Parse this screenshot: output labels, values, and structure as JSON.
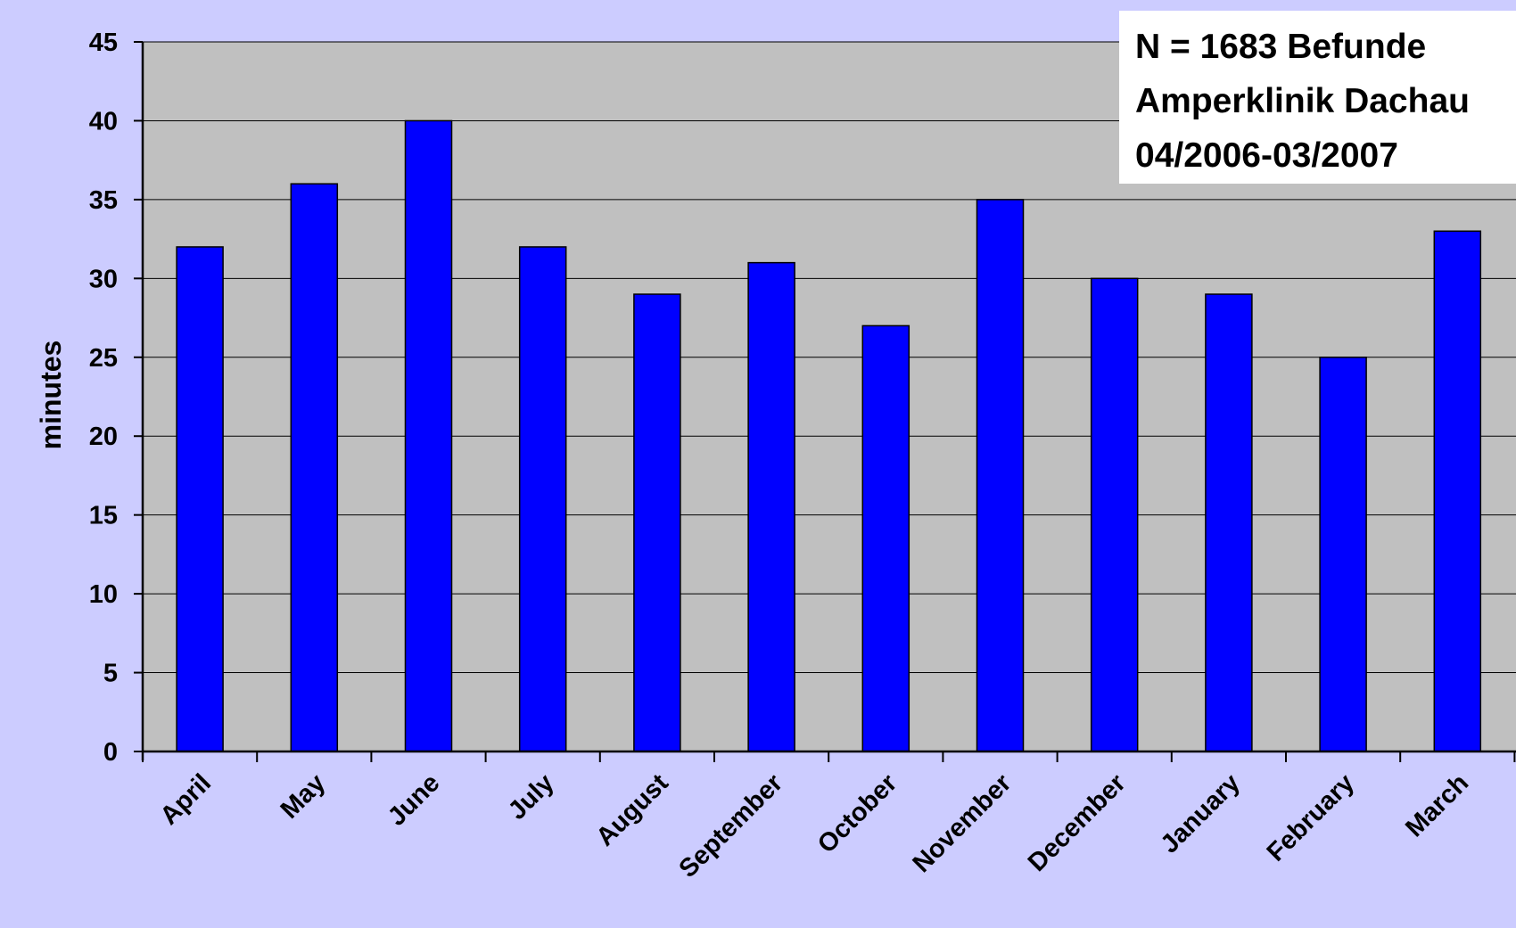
{
  "chart_data": {
    "type": "bar",
    "categories": [
      "April",
      "May",
      "June",
      "July",
      "August",
      "September",
      "October",
      "November",
      "December",
      "January",
      "February",
      "March"
    ],
    "series": [
      {
        "values": [
          32,
          36,
          40,
          32,
          29,
          31,
          27,
          35,
          30,
          29,
          25,
          33
        ]
      }
    ],
    "ylabel": "minutes",
    "xlabel": "",
    "ylim": [
      0,
      45
    ],
    "yticks": [
      0,
      5,
      10,
      15,
      20,
      25,
      30,
      35,
      40,
      45
    ],
    "grid": true,
    "colors": {
      "page_background": "#ccccff",
      "plot_background": "#c0c0c0",
      "bar_fill": "#0000ff",
      "bar_stroke": "#000000"
    }
  },
  "annotation": {
    "lines": [
      "N = 1683 Befunde",
      "Amperklinik Dachau",
      "04/2006-03/2007"
    ]
  }
}
